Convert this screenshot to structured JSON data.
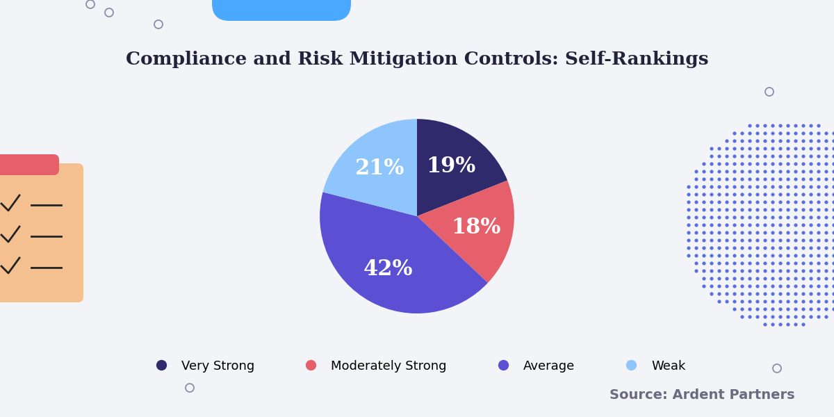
{
  "chart_data": {
    "type": "pie",
    "title": "Compliance and Risk Mitigation Controls: Self-Rankings",
    "categories": [
      "Very Strong",
      "Moderately Strong",
      "Average",
      "Weak"
    ],
    "values": [
      19,
      18,
      42,
      21
    ],
    "value_labels": [
      "19%",
      "18%",
      "42%",
      "21%"
    ],
    "data_labels": true,
    "colors": [
      "#2e2a6b",
      "#e5606b",
      "#5b4fd3",
      "#8ec5fc"
    ],
    "legend": "lower center",
    "source": "Source: Ardent Partners"
  }
}
